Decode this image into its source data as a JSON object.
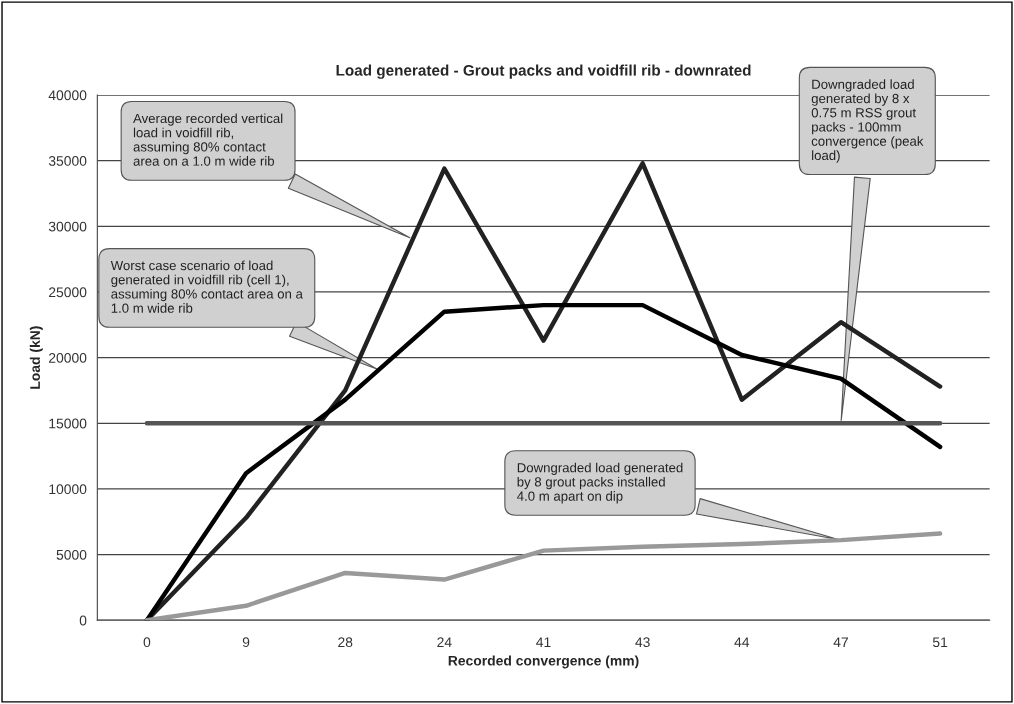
{
  "chart_data": {
    "type": "line",
    "title": "Load generated - Grout packs and voidfill rib - downrated",
    "xlabel": "Recorded convergence (mm)",
    "ylabel": "Load (kN)",
    "categories": [
      "0",
      "9",
      "28",
      "24",
      "41",
      "43",
      "44",
      "47",
      "51"
    ],
    "series": [
      {
        "color": "#222222",
        "values": [
          0,
          7800,
          17500,
          34400,
          21300,
          34800,
          16800,
          22700,
          17800
        ]
      },
      {
        "color": "#000000",
        "values": [
          0,
          11200,
          16800,
          23500,
          24000,
          24000,
          20200,
          18400,
          13200
        ]
      },
      {
        "color": "#555555",
        "values": [
          15000,
          15000,
          15000,
          15000,
          15000,
          15000,
          15000,
          15000,
          15000
        ]
      },
      {
        "color": "#999999",
        "values": [
          0,
          1100,
          3600,
          3100,
          5300,
          5600,
          5800,
          6100,
          6600
        ]
      }
    ],
    "ylim": [
      0,
      40000
    ],
    "yticks": [
      0,
      5000,
      10000,
      15000,
      20000,
      25000,
      30000,
      35000,
      40000
    ],
    "grid": "y",
    "legend": false,
    "marker": "none",
    "line_style": "solid",
    "annotations": [
      "Average recorded vertical\nload in voidfill rib,\nassuming 80% contact\narea on a 1.0 m wide rib",
      "Worst case scenario of load\ngenerated in voidfill rib (cell 1),\nassuming 80% contact area on a\n1.0 m wide rib",
      {
        "text": "Downgraded load\ngenerated by 8 x\n0.75 m RSS grout\npacks - 100mm\nconvergence (peak\nload)",
        "x": "47",
        "y": 15000
      },
      {
        "text": "Downgraded load generated\nby 8 grout packs installed\n4.0 m apart on dip",
        "x": "47",
        "y": 6100
      }
    ]
  }
}
